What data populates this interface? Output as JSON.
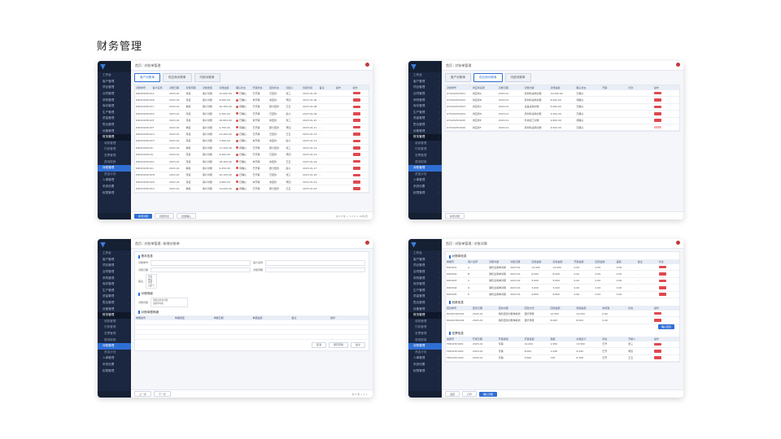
{
  "page": {
    "title": "财务管理"
  },
  "common": {
    "brand": "",
    "user_name": "",
    "sidebar_items": [
      {
        "label": "工作台",
        "kind": "top"
      },
      {
        "label": "客户管理",
        "kind": "top"
      },
      {
        "label": "项目管理",
        "kind": "top"
      },
      {
        "label": "合同管理",
        "kind": "top"
      },
      {
        "label": "采购管理",
        "kind": "top"
      },
      {
        "label": "库存管理",
        "kind": "top"
      },
      {
        "label": "生产管理",
        "kind": "top"
      },
      {
        "label": "质量管理",
        "kind": "top"
      },
      {
        "label": "售后管理",
        "kind": "top"
      },
      {
        "label": "设备管理",
        "kind": "top"
      },
      {
        "label": "财务管理",
        "kind": "group"
      },
      {
        "label": "收款管理",
        "kind": "sub"
      },
      {
        "label": "付款管理",
        "kind": "sub"
      },
      {
        "label": "发票管理",
        "kind": "sub"
      },
      {
        "label": "费用报销",
        "kind": "sub"
      },
      {
        "label": "对账管理",
        "kind": "active"
      },
      {
        "label": "资金计划",
        "kind": "sub"
      },
      {
        "label": "人事管理",
        "kind": "top"
      },
      {
        "label": "系统设置",
        "kind": "top"
      },
      {
        "label": "权限管理",
        "kind": "top"
      }
    ]
  },
  "screens": {
    "s1": {
      "crumbs": [
        "首页",
        "对账单管理"
      ],
      "tabs": [
        "客户对账单",
        "供应商对账单",
        "内部对账单"
      ],
      "columns": [
        "对账单号",
        "客户名称",
        "对账日期",
        "对账周期",
        "对账类型",
        "对账金额",
        "确认状态",
        "开票状态",
        "回款状态",
        "创建人",
        "创建时间",
        "备注",
        "操作",
        "操作"
      ],
      "rows": [
        [
          "DZD202301001",
          "A",
          "2023-01",
          "月度",
          "客户对账",
          "12,000.00",
          "已确认",
          "已开票",
          "已回款",
          "张三",
          "2023-01-05",
          "-",
          "",
          ""
        ],
        [
          "DZD202301002",
          "B",
          "2023-01",
          "月度",
          "客户对账",
          "8,560.00",
          "已确认",
          "未开票",
          "未回款",
          "李四",
          "2023-01-06",
          "-",
          "",
          ""
        ],
        [
          "DZD202301003",
          "C",
          "2023-01",
          "季度",
          "客户对账",
          "20,300.00",
          "待确认",
          "已开票",
          "部分回款",
          "王五",
          "2023-01-08",
          "-",
          "",
          ""
        ],
        [
          "DZD202301004",
          "D",
          "2023-01",
          "月度",
          "客户对账",
          "5,200.00",
          "已确认",
          "已开票",
          "已回款",
          "赵六",
          "2023-01-09",
          "-",
          "",
          ""
        ],
        [
          "DZD202301005",
          "E",
          "2023-01",
          "月度",
          "客户对账",
          "16,800.00",
          "已确认",
          "未开票",
          "未回款",
          "张三",
          "2023-01-10",
          "-",
          "",
          ""
        ],
        [
          "DZD202301006",
          "F",
          "2023-01",
          "季度",
          "客户对账",
          "9,750.00",
          "待确认",
          "已开票",
          "部分回款",
          "李四",
          "2023-01-11",
          "-",
          "",
          ""
        ],
        [
          "DZD202301007",
          "G",
          "2023-01",
          "月度",
          "客户对账",
          "13,400.00",
          "已确认",
          "已开票",
          "已回款",
          "王五",
          "2023-01-12",
          "-",
          "",
          ""
        ],
        [
          "DZD202301008",
          "H",
          "2023-01",
          "月度",
          "客户对账",
          "7,600.00",
          "已确认",
          "未开票",
          "未回款",
          "赵六",
          "2023-01-13",
          "-",
          "",
          ""
        ],
        [
          "DZD202301009",
          "I",
          "2023-01",
          "季度",
          "客户对账",
          "11,200.00",
          "待确认",
          "已开票",
          "部分回款",
          "张三",
          "2023-01-14",
          "-",
          "",
          ""
        ],
        [
          "DZD202301010",
          "J",
          "2023-01",
          "月度",
          "客户对账",
          "4,900.00",
          "已确认",
          "已开票",
          "已回款",
          "李四",
          "2023-01-15",
          "-",
          "",
          ""
        ],
        [
          "DZD202301011",
          "K",
          "2023-01",
          "月度",
          "客户对账",
          "18,300.00",
          "已确认",
          "未开票",
          "未回款",
          "王五",
          "2023-01-16",
          "-",
          "",
          ""
        ],
        [
          "DZD202301012",
          "L",
          "2023-01",
          "季度",
          "客户对账",
          "6,450.00",
          "待确认",
          "已开票",
          "部分回款",
          "赵六",
          "2023-01-17",
          "-",
          "",
          ""
        ],
        [
          "DZD202301013",
          "M",
          "2023-01",
          "月度",
          "客户对账",
          "10,100.00",
          "已确认",
          "已开票",
          "已回款",
          "张三",
          "2023-01-18",
          "-",
          "",
          ""
        ],
        [
          "DZD202301014",
          "N",
          "2023-01",
          "月度",
          "客户对账",
          "3,800.00",
          "已确认",
          "未开票",
          "未回款",
          "李四",
          "2023-01-19",
          "-",
          "",
          ""
        ],
        [
          "DZD202301015",
          "O",
          "2023-01",
          "季度",
          "客户对账",
          "14,600.00",
          "待确认",
          "已开票",
          "部分回款",
          "王五",
          "2023-01-20",
          "-",
          "",
          ""
        ]
      ],
      "footer": {
        "primary": "新增对账",
        "b1": "批量导出",
        "b2": "批量确认",
        "pager": "共 15 条  < 1 2 3 >  10条/页"
      }
    },
    "s2": {
      "crumbs": [
        "首页",
        "对账单管理"
      ],
      "tabs": [
        "客户对账单",
        "供应商对账单",
        "内部对账单"
      ],
      "active_tab": 1,
      "columns": [
        "对账单号",
        "供应商名称",
        "对账日期",
        "对账内容",
        "对账金额",
        "确认状态",
        "开票",
        "付款",
        "操作"
      ],
      "rows": [
        [
          "GYS202301001",
          "供应商A",
          "2023-01",
          "原材料采购对账",
          "12,000.00",
          "已确认",
          "",
          "",
          ""
        ],
        [
          "GYS202301002",
          "供应商B",
          "2023-01",
          "原材料采购对账",
          "8,000.00",
          "待确认",
          "",
          "",
          ""
        ],
        [
          "GYS202301003",
          "供应商C",
          "2023-01",
          "设备采购对账",
          "5,600.00",
          "已确认",
          "",
          "",
          ""
        ],
        [
          "GYS202301004",
          "供应商D",
          "2023-01",
          "原材料采购对账",
          "3,200.00",
          "已确认",
          "",
          "",
          ""
        ],
        [
          "GYS202301005",
          "供应商E",
          "2023-01",
          "外协加工对账",
          "9,800.00",
          "待确认",
          "",
          "",
          ""
        ],
        [
          "GYS202301006",
          "供应商F",
          "2023-01",
          "原材料采购对账",
          "4,500.00",
          "已确认",
          "",
          "",
          ""
        ]
      ],
      "footer": {
        "b1": "新增对账"
      }
    },
    "s3": {
      "crumbs": [
        "首页",
        "对账单管理",
        "新增对账单"
      ],
      "section1": "基本信息",
      "labels": [
        "对账单号",
        "客户名称",
        "对账日期",
        "对账周期",
        "备注"
      ],
      "placeholders": [
        "请输入",
        "请选择",
        "请选择",
        "请选择"
      ],
      "options": [
        "月度",
        "季度",
        "年度",
        "自定义"
      ],
      "section2": "对账明细",
      "detail_label": "对账内容",
      "detail_lines": [
        "销售出库单对账",
        "退货单对账"
      ],
      "section3": "对账单据明细",
      "detail_columns": [
        "单据编号",
        "单据类型",
        "单据日期",
        "单据金额",
        "备注",
        "操作"
      ],
      "buttons": [
        "取消",
        "保存草稿",
        "提交"
      ],
      "footer": {
        "b1": "上一步",
        "b2": "下一步",
        "pager": "共 0 条  < 1 >"
      }
    },
    "s4": {
      "crumbs": [
        "首页",
        "对账单管理",
        "对账详情"
      ],
      "section1": "对账单信息",
      "columns1": [
        "单据号",
        "客户名称",
        "对账内容",
        "对账日期",
        "应收金额",
        "实收金额",
        "开票金额",
        "回款金额",
        "差额",
        "备注",
        "状态"
      ],
      "rows1": [
        [
          "DZD001",
          "A",
          "销售出库单对账",
          "2023-01",
          "12,000",
          "12,000",
          "0.00",
          "0.00",
          "0.00",
          "-",
          ""
        ],
        [
          "DZD002",
          "B",
          "销售出库单对账",
          "2023-01",
          "8,000",
          "8,000",
          "0.00",
          "0.00",
          "0.00",
          "-",
          ""
        ],
        [
          "DZD003",
          "C",
          "销售出库单对账",
          "2023-01",
          "5,600",
          "5,600",
          "0.00",
          "0.00",
          "0.00",
          "-",
          ""
        ],
        [
          "DZD004",
          "D",
          "销售出库单对账",
          "2023-01",
          "3,200",
          "3,200",
          "0.00",
          "0.00",
          "0.00",
          "-",
          ""
        ],
        [
          "DZD005",
          "E",
          "销售出库单对账",
          "2023-01",
          "9,800",
          "9,800",
          "0.00",
          "0.00",
          "0.00",
          "-",
          ""
        ]
      ],
      "section2": "回款信息",
      "columns2": [
        "回款单号",
        "回款日期",
        "回款内容",
        "回款方式",
        "回款金额",
        "核销金额",
        "未核销",
        "状态",
        "操作"
      ],
      "rows2": [
        [
          "HK202301001",
          "2023-01",
          "销售回款对账单收款",
          "银行转账",
          "12,000",
          "12,000",
          "0.00",
          "",
          ""
        ],
        [
          "HK202301002",
          "2023-01",
          "销售回款对账单收款",
          "银行转账",
          "8,000",
          "8,000",
          "0.00",
          "",
          ""
        ]
      ],
      "confirm_label": "确认回款",
      "section3": "发票信息",
      "columns3": [
        "发票号",
        "开票日期",
        "开票类型",
        "开票金额",
        "税额",
        "价税合计",
        "状态",
        "开票人",
        "操作"
      ],
      "rows3": [
        [
          "FP202301001",
          "2023-01",
          "专票",
          "12,000",
          "1,560",
          "13,560",
          "已开",
          "张三",
          ""
        ],
        [
          "FP202301002",
          "2023-01",
          "专票",
          "8,000",
          "1,040",
          "9,040",
          "已开",
          "李四",
          ""
        ],
        [
          "FP202301003",
          "2023-01",
          "普票",
          "5,600",
          "728",
          "6,328",
          "已开",
          "王五",
          ""
        ]
      ],
      "footer": {
        "b1": "返回",
        "b2": "打印",
        "primary": "确认对账"
      }
    }
  }
}
